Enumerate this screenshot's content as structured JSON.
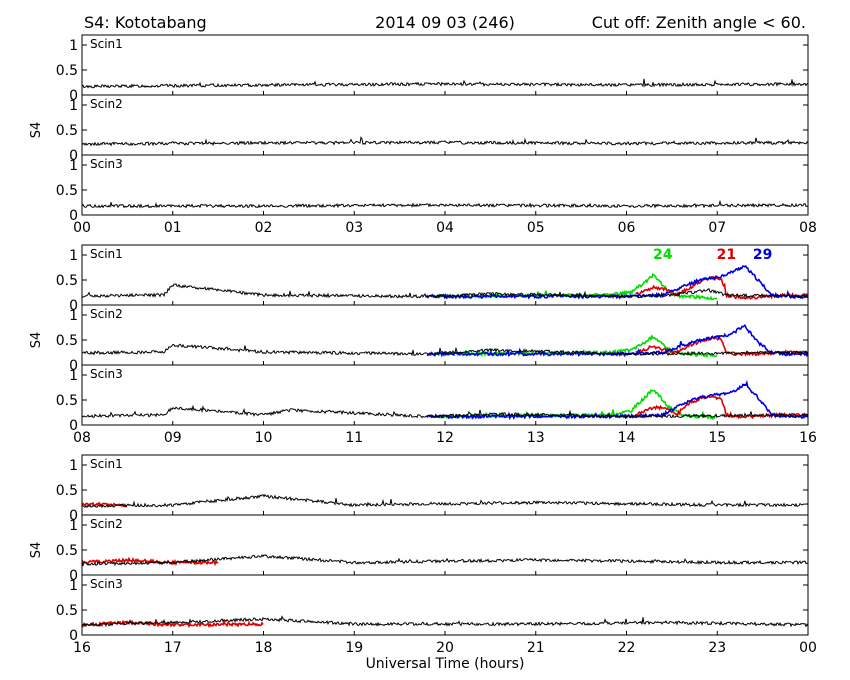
{
  "header": {
    "station": "S4: Kototabang",
    "date": "2014 09 03 (246)",
    "cutoff": "Cut off: Zenith angle < 60."
  },
  "y_axis_label": "S4",
  "panel_labels": [
    "Scin1",
    "Scin2",
    "Scin3"
  ],
  "y_ticks": [
    "1",
    "0.5",
    "0"
  ],
  "colors": {
    "default": "#000000",
    "prn24": "#00dd00",
    "prn21": "#dd0000",
    "prn29": "#0000dd"
  },
  "chart_data": [
    {
      "type": "line",
      "x_ticks": [
        "00",
        "01",
        "02",
        "03",
        "04",
        "05",
        "06",
        "07",
        "08"
      ],
      "xlim": [
        0,
        8
      ],
      "ylim": [
        0,
        1.2
      ],
      "panels": [
        "Scin1",
        "Scin2",
        "Scin3"
      ],
      "series": [
        {
          "receiver": "Scin1",
          "color": "#000000",
          "x": [
            0,
            2,
            4,
            6,
            8
          ],
          "values": [
            0.17,
            0.2,
            0.22,
            0.2,
            0.22
          ]
        },
        {
          "receiver": "Scin2",
          "color": "#000000",
          "x": [
            0,
            2,
            4,
            6,
            8
          ],
          "values": [
            0.22,
            0.24,
            0.25,
            0.23,
            0.25
          ]
        },
        {
          "receiver": "Scin3",
          "color": "#000000",
          "x": [
            0,
            2,
            4,
            6,
            8
          ],
          "values": [
            0.18,
            0.18,
            0.2,
            0.18,
            0.2
          ]
        }
      ]
    },
    {
      "type": "line",
      "x_ticks": [
        "08",
        "09",
        "10",
        "11",
        "12",
        "13",
        "14",
        "15",
        "16"
      ],
      "xlim": [
        8,
        16
      ],
      "ylim": [
        0,
        1.2
      ],
      "panels": [
        "Scin1",
        "Scin2",
        "Scin3"
      ],
      "prn_labels": [
        {
          "text": "24",
          "color": "#00dd00",
          "x": 14.4,
          "y": 0.92
        },
        {
          "text": "21",
          "color": "#dd0000",
          "x": 15.1,
          "y": 0.92
        },
        {
          "text": "29",
          "color": "#0000dd",
          "x": 15.5,
          "y": 0.92
        }
      ],
      "series": [
        {
          "name": "24",
          "receiver": "Scin1",
          "color": "#00dd00",
          "x": [
            11.9,
            13.8,
            14.05,
            14.2,
            14.3,
            14.45,
            14.6,
            14.9,
            15.0
          ],
          "values": [
            0.17,
            0.2,
            0.25,
            0.45,
            0.6,
            0.3,
            0.17,
            0.15,
            0.12
          ]
        },
        {
          "name": "21",
          "receiver": "Scin1",
          "color": "#dd0000",
          "x": [
            14.1,
            14.3,
            14.45,
            14.55,
            14.7,
            14.85,
            14.95,
            15.05,
            15.1,
            15.2,
            15.4,
            15.6,
            16.0
          ],
          "values": [
            0.2,
            0.35,
            0.3,
            0.2,
            0.35,
            0.5,
            0.55,
            0.5,
            0.2,
            0.15,
            0.15,
            0.18,
            0.2
          ]
        },
        {
          "name": "29",
          "receiver": "Scin1",
          "color": "#0000dd",
          "x": [
            11.8,
            13.0,
            14.0,
            14.4,
            14.6,
            14.8,
            15.0,
            15.15,
            15.3,
            15.45,
            15.6,
            15.75,
            16.0
          ],
          "values": [
            0.17,
            0.17,
            0.17,
            0.2,
            0.35,
            0.5,
            0.55,
            0.65,
            0.78,
            0.5,
            0.2,
            0.17,
            0.17
          ]
        },
        {
          "receiver": "Scin1",
          "color": "#000000",
          "x": [
            8.0,
            8.9,
            9.0,
            10.0,
            11.8,
            12.5,
            14.0,
            14.5,
            14.9,
            15.1,
            16.0
          ],
          "values": [
            0.18,
            0.2,
            0.4,
            0.2,
            0.17,
            0.22,
            0.17,
            0.2,
            0.3,
            0.2,
            0.17
          ]
        },
        {
          "name": "24",
          "receiver": "Scin2",
          "color": "#00dd00",
          "x": [
            11.9,
            13.8,
            14.05,
            14.2,
            14.3,
            14.45,
            14.6,
            14.9,
            15.0
          ],
          "values": [
            0.22,
            0.25,
            0.3,
            0.45,
            0.58,
            0.32,
            0.22,
            0.2,
            0.2
          ]
        },
        {
          "name": "21",
          "receiver": "Scin2",
          "color": "#dd0000",
          "x": [
            14.1,
            14.3,
            14.45,
            14.55,
            14.7,
            14.85,
            14.95,
            15.05,
            15.1,
            15.2,
            15.4,
            15.6,
            16.0
          ],
          "values": [
            0.25,
            0.35,
            0.3,
            0.25,
            0.4,
            0.5,
            0.55,
            0.5,
            0.25,
            0.22,
            0.22,
            0.25,
            0.25
          ]
        },
        {
          "name": "29",
          "receiver": "Scin2",
          "color": "#0000dd",
          "x": [
            11.8,
            13.0,
            14.0,
            14.4,
            14.6,
            14.8,
            15.0,
            15.15,
            15.3,
            15.45,
            15.6,
            15.75,
            16.0
          ],
          "values": [
            0.22,
            0.22,
            0.22,
            0.25,
            0.38,
            0.5,
            0.55,
            0.62,
            0.78,
            0.45,
            0.25,
            0.22,
            0.22
          ]
        },
        {
          "receiver": "Scin2",
          "color": "#000000",
          "x": [
            8.0,
            8.9,
            9.0,
            10.0,
            11.8,
            12.5,
            14.0,
            16.0
          ],
          "values": [
            0.24,
            0.26,
            0.4,
            0.26,
            0.22,
            0.3,
            0.22,
            0.25
          ]
        },
        {
          "name": "24",
          "receiver": "Scin3",
          "color": "#00dd00",
          "x": [
            11.9,
            13.8,
            14.05,
            14.2,
            14.3,
            14.45,
            14.6,
            14.9,
            15.0
          ],
          "values": [
            0.17,
            0.2,
            0.28,
            0.55,
            0.72,
            0.38,
            0.2,
            0.15,
            0.15
          ]
        },
        {
          "name": "21",
          "receiver": "Scin3",
          "color": "#dd0000",
          "x": [
            14.1,
            14.3,
            14.45,
            14.55,
            14.7,
            14.85,
            14.95,
            15.05,
            15.1,
            15.2,
            15.4,
            15.6,
            16.0
          ],
          "values": [
            0.2,
            0.35,
            0.35,
            0.2,
            0.45,
            0.55,
            0.58,
            0.5,
            0.2,
            0.17,
            0.17,
            0.2,
            0.2
          ]
        },
        {
          "name": "29",
          "receiver": "Scin3",
          "color": "#0000dd",
          "x": [
            11.8,
            13.0,
            14.0,
            14.4,
            14.6,
            14.8,
            15.0,
            15.15,
            15.3,
            15.45,
            15.6,
            15.75,
            16.0
          ],
          "values": [
            0.17,
            0.17,
            0.17,
            0.2,
            0.4,
            0.55,
            0.6,
            0.65,
            0.8,
            0.55,
            0.2,
            0.17,
            0.17
          ]
        },
        {
          "receiver": "Scin3",
          "color": "#000000",
          "x": [
            8.0,
            8.9,
            9.0,
            10.0,
            10.3,
            11.8,
            12.5,
            14.0,
            16.0
          ],
          "values": [
            0.18,
            0.2,
            0.35,
            0.2,
            0.3,
            0.17,
            0.22,
            0.17,
            0.2
          ]
        }
      ]
    },
    {
      "type": "line",
      "x_ticks": [
        "16",
        "17",
        "18",
        "19",
        "20",
        "21",
        "22",
        "23",
        "00"
      ],
      "xlim": [
        16,
        24
      ],
      "ylim": [
        0,
        1.2
      ],
      "xlabel": "Universal Time (hours)",
      "panels": [
        "Scin1",
        "Scin2",
        "Scin3"
      ],
      "series": [
        {
          "receiver": "Scin1",
          "color": "#dd0000",
          "x": [
            16.0,
            16.3,
            16.5
          ],
          "values": [
            0.2,
            0.22,
            0.18
          ]
        },
        {
          "receiver": "Scin1",
          "color": "#000000",
          "x": [
            16.0,
            17.0,
            18.0,
            19.0,
            21.0,
            23.0,
            24.0
          ],
          "values": [
            0.18,
            0.2,
            0.38,
            0.2,
            0.25,
            0.2,
            0.2
          ]
        },
        {
          "receiver": "Scin2",
          "color": "#dd0000",
          "x": [
            16.0,
            16.5,
            17.0,
            17.5
          ],
          "values": [
            0.25,
            0.3,
            0.25,
            0.25
          ]
        },
        {
          "receiver": "Scin2",
          "color": "#000000",
          "x": [
            16.0,
            17.0,
            18.0,
            19.0,
            21.0,
            23.0,
            24.0
          ],
          "values": [
            0.22,
            0.25,
            0.38,
            0.25,
            0.3,
            0.25,
            0.25
          ]
        },
        {
          "receiver": "Scin3",
          "color": "#dd0000",
          "x": [
            16.0,
            16.5,
            17.0,
            18.0
          ],
          "values": [
            0.2,
            0.25,
            0.2,
            0.22
          ]
        },
        {
          "receiver": "Scin3",
          "color": "#000000",
          "x": [
            16.0,
            17.0,
            18.0,
            19.0,
            21.0,
            22.5,
            24.0
          ],
          "values": [
            0.2,
            0.25,
            0.32,
            0.22,
            0.22,
            0.25,
            0.2
          ]
        }
      ]
    }
  ]
}
